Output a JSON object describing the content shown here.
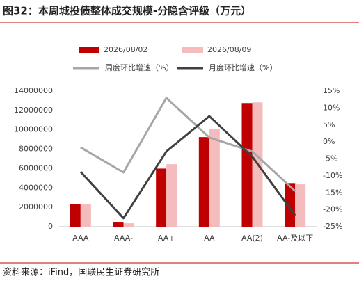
{
  "chart_data": {
    "type": "bar",
    "title": "图32：本周城投债整体成交规模-分隐含评级（万元）",
    "source": "资料来源：iFind，国联民生证券研究所",
    "categories": [
      "AAA",
      "AAA-",
      "AA+",
      "AA",
      "AA(2)",
      "AA-及以下"
    ],
    "series": [
      {
        "name": "2026/08/02",
        "type": "bar",
        "color": "#c00000",
        "values": [
          2300000,
          500000,
          6000000,
          9250000,
          12760000,
          4500000
        ]
      },
      {
        "name": "2026/08/09",
        "type": "bar",
        "color": "#f4bcbc",
        "values": [
          2300000,
          350000,
          6450000,
          10100000,
          12830000,
          4370000
        ]
      },
      {
        "name": "周度环比增速（%）",
        "type": "line",
        "axis": "y2",
        "color": "#a6a6a6",
        "values": [
          -1.6,
          -9,
          13,
          1.3,
          -2.8,
          -14.5
        ]
      },
      {
        "name": "月度环比增速（%）",
        "type": "line",
        "axis": "y2",
        "color": "#404040",
        "values": [
          -8.8,
          -22.5,
          -2.8,
          7.6,
          -4.3,
          -21.7
        ]
      }
    ],
    "ylim": [
      0,
      14000000
    ],
    "yticks": [
      0,
      2000000,
      4000000,
      6000000,
      8000000,
      10000000,
      12000000,
      14000000
    ],
    "y2lim": [
      -25,
      15
    ],
    "y2ticks": [
      {
        "value": -25,
        "label": "-25%"
      },
      {
        "value": -20,
        "label": "-20%"
      },
      {
        "value": -15,
        "label": "-15%"
      },
      {
        "value": -10,
        "label": "-10%"
      },
      {
        "value": -5,
        "label": "-5%"
      },
      {
        "value": 0,
        "label": "0%"
      },
      {
        "value": 5,
        "label": "5%"
      },
      {
        "value": 10,
        "label": "10%"
      },
      {
        "value": 15,
        "label": "15%"
      }
    ],
    "grid": false
  }
}
